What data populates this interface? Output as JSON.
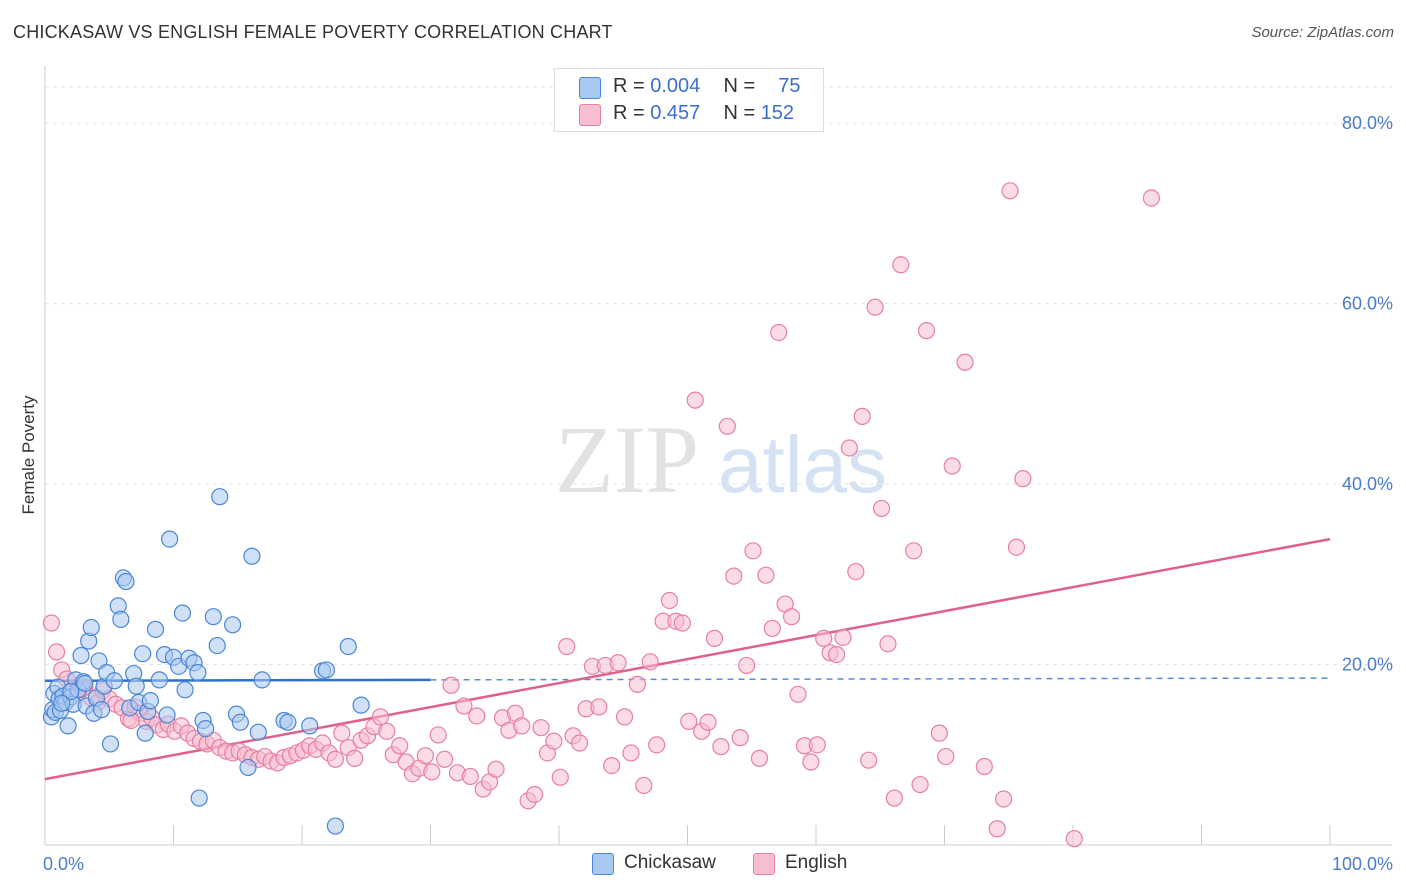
{
  "title": "CHICKASAW VS ENGLISH FEMALE POVERTY CORRELATION CHART",
  "source": "Source: ZipAtlas.com",
  "legend": {
    "rows": [
      {
        "r_label": "R =",
        "r_value": "0.004",
        "n_label": "N =",
        "n_value": "75"
      },
      {
        "r_label": "R =",
        "r_value": "0.457",
        "n_label": "N =",
        "n_value": "152"
      }
    ]
  },
  "colors": {
    "chickasaw_fill": "#a9c8f0",
    "chickasaw_stroke": "#4a86d6",
    "chickasaw_line": "#2f6fd0",
    "english_fill": "#f7bdd0",
    "english_stroke": "#e77fa2",
    "english_line": "#e0608c",
    "tick_text": "#4a7cc9"
  },
  "watermark": {
    "part1": "ZIP",
    "part2": "atlas"
  },
  "chart_data": {
    "type": "scatter",
    "ylabel": "Female Poverty",
    "xlabel": "",
    "xlim": [
      0,
      100
    ],
    "ylim": [
      0,
      85
    ],
    "x_tick_labels": [
      {
        "value": 0,
        "label": "0.0%"
      },
      {
        "value": 100,
        "label": "100.0%"
      }
    ],
    "y_tick_labels": [
      {
        "value": 20,
        "label": "20.0%"
      },
      {
        "value": 40,
        "label": "40.0%"
      },
      {
        "value": 60,
        "label": "60.0%"
      },
      {
        "value": 80,
        "label": "80.0%"
      }
    ],
    "grid": true,
    "legend_position": "top-center",
    "series": [
      {
        "name": "Chickasaw",
        "points": [
          [
            0.5,
            14.2
          ],
          [
            0.6,
            15.0
          ],
          [
            0.7,
            16.8
          ],
          [
            0.8,
            14.7
          ],
          [
            1.0,
            17.5
          ],
          [
            1.1,
            16.2
          ],
          [
            1.2,
            14.9
          ],
          [
            1.4,
            16.5
          ],
          [
            1.6,
            15.8
          ],
          [
            1.8,
            13.2
          ],
          [
            2.0,
            16.4
          ],
          [
            2.2,
            15.6
          ],
          [
            2.4,
            18.3
          ],
          [
            2.6,
            17.2
          ],
          [
            2.8,
            21.0
          ],
          [
            3.0,
            18.1
          ],
          [
            3.2,
            15.4
          ],
          [
            3.4,
            22.6
          ],
          [
            3.6,
            24.1
          ],
          [
            3.8,
            14.6
          ],
          [
            4.0,
            16.3
          ],
          [
            4.2,
            20.4
          ],
          [
            4.4,
            15.0
          ],
          [
            4.6,
            17.6
          ],
          [
            4.8,
            19.1
          ],
          [
            5.1,
            11.2
          ],
          [
            5.4,
            18.2
          ],
          [
            5.7,
            26.5
          ],
          [
            5.9,
            25.0
          ],
          [
            6.1,
            29.6
          ],
          [
            6.3,
            29.2
          ],
          [
            6.6,
            15.2
          ],
          [
            6.9,
            19.0
          ],
          [
            7.1,
            17.6
          ],
          [
            7.3,
            15.8
          ],
          [
            7.6,
            21.2
          ],
          [
            7.8,
            12.4
          ],
          [
            8.0,
            14.8
          ],
          [
            8.2,
            16.0
          ],
          [
            8.6,
            23.9
          ],
          [
            8.9,
            18.3
          ],
          [
            9.3,
            21.1
          ],
          [
            9.7,
            33.9
          ],
          [
            10.0,
            20.8
          ],
          [
            10.4,
            19.8
          ],
          [
            10.7,
            25.7
          ],
          [
            10.9,
            17.2
          ],
          [
            11.2,
            20.7
          ],
          [
            11.6,
            20.2
          ],
          [
            11.9,
            19.1
          ],
          [
            12.0,
            5.2
          ],
          [
            12.3,
            13.8
          ],
          [
            12.5,
            12.9
          ],
          [
            13.1,
            25.3
          ],
          [
            13.4,
            22.1
          ],
          [
            13.6,
            38.6
          ],
          [
            14.6,
            24.4
          ],
          [
            14.9,
            14.5
          ],
          [
            15.2,
            13.6
          ],
          [
            15.8,
            8.6
          ],
          [
            16.1,
            32.0
          ],
          [
            16.9,
            18.3
          ],
          [
            16.6,
            12.5
          ],
          [
            18.6,
            13.8
          ],
          [
            18.9,
            13.6
          ],
          [
            20.6,
            13.2
          ],
          [
            21.6,
            19.3
          ],
          [
            21.9,
            19.4
          ],
          [
            22.6,
            2.1
          ],
          [
            23.6,
            22.0
          ],
          [
            24.6,
            15.5
          ],
          [
            9.5,
            14.4
          ],
          [
            3.1,
            17.9
          ],
          [
            2.0,
            17.0
          ],
          [
            1.3,
            15.7
          ]
        ],
        "trend": {
          "x": [
            0,
            30
          ],
          "y": [
            18.2,
            18.3
          ],
          "extended_x": [
            30,
            100
          ],
          "extended_y": [
            18.3,
            18.5
          ]
        }
      },
      {
        "name": "English",
        "points": [
          [
            0.5,
            24.6
          ],
          [
            0.9,
            21.4
          ],
          [
            1.3,
            19.4
          ],
          [
            1.7,
            18.4
          ],
          [
            2.1,
            17.2
          ],
          [
            2.6,
            16.8
          ],
          [
            3.1,
            17.5
          ],
          [
            3.6,
            16.3
          ],
          [
            4.1,
            15.8
          ],
          [
            4.5,
            17.1
          ],
          [
            5.0,
            16.2
          ],
          [
            5.5,
            15.6
          ],
          [
            6.0,
            15.2
          ],
          [
            6.5,
            14.0
          ],
          [
            7.0,
            15.3
          ],
          [
            7.4,
            14.6
          ],
          [
            7.9,
            13.7
          ],
          [
            8.3,
            14.1
          ],
          [
            8.7,
            13.3
          ],
          [
            9.2,
            12.8
          ],
          [
            9.6,
            13.4
          ],
          [
            10.1,
            12.6
          ],
          [
            10.6,
            13.2
          ],
          [
            11.1,
            12.4
          ],
          [
            11.6,
            11.8
          ],
          [
            12.1,
            11.5
          ],
          [
            12.6,
            11.2
          ],
          [
            13.1,
            11.6
          ],
          [
            13.6,
            10.8
          ],
          [
            14.1,
            10.4
          ],
          [
            14.6,
            10.2
          ],
          [
            15.1,
            10.4
          ],
          [
            15.6,
            10.0
          ],
          [
            16.1,
            9.7
          ],
          [
            16.6,
            9.5
          ],
          [
            17.1,
            9.8
          ],
          [
            17.6,
            9.3
          ],
          [
            18.1,
            9.1
          ],
          [
            18.6,
            9.7
          ],
          [
            19.1,
            9.9
          ],
          [
            19.6,
            10.2
          ],
          [
            20.1,
            10.5
          ],
          [
            20.6,
            11.0
          ],
          [
            21.1,
            10.6
          ],
          [
            21.6,
            11.3
          ],
          [
            22.1,
            10.2
          ],
          [
            22.6,
            9.5
          ],
          [
            23.1,
            12.4
          ],
          [
            23.6,
            10.8
          ],
          [
            24.1,
            9.6
          ],
          [
            24.6,
            11.6
          ],
          [
            25.1,
            12.1
          ],
          [
            25.6,
            13.1
          ],
          [
            26.1,
            14.2
          ],
          [
            26.6,
            12.6
          ],
          [
            27.1,
            10.0
          ],
          [
            27.6,
            11.0
          ],
          [
            28.1,
            9.2
          ],
          [
            28.6,
            7.9
          ],
          [
            29.1,
            8.5
          ],
          [
            29.6,
            9.9
          ],
          [
            30.1,
            8.1
          ],
          [
            30.6,
            12.2
          ],
          [
            31.1,
            9.5
          ],
          [
            31.6,
            17.7
          ],
          [
            32.1,
            8.0
          ],
          [
            32.6,
            15.4
          ],
          [
            33.1,
            7.6
          ],
          [
            33.6,
            14.3
          ],
          [
            34.1,
            6.2
          ],
          [
            34.6,
            7.0
          ],
          [
            35.1,
            8.4
          ],
          [
            35.6,
            14.1
          ],
          [
            36.1,
            12.7
          ],
          [
            36.6,
            14.6
          ],
          [
            37.1,
            13.2
          ],
          [
            37.6,
            4.9
          ],
          [
            38.1,
            5.6
          ],
          [
            38.6,
            13.0
          ],
          [
            39.1,
            10.2
          ],
          [
            39.6,
            11.5
          ],
          [
            40.1,
            7.5
          ],
          [
            40.6,
            22.0
          ],
          [
            41.1,
            12.1
          ],
          [
            41.6,
            11.3
          ],
          [
            42.1,
            15.1
          ],
          [
            42.6,
            19.8
          ],
          [
            43.1,
            15.3
          ],
          [
            43.6,
            19.9
          ],
          [
            44.1,
            8.8
          ],
          [
            44.6,
            20.2
          ],
          [
            45.1,
            14.2
          ],
          [
            45.6,
            10.2
          ],
          [
            46.1,
            17.8
          ],
          [
            46.6,
            6.6
          ],
          [
            47.1,
            20.3
          ],
          [
            47.6,
            11.1
          ],
          [
            48.1,
            24.8
          ],
          [
            48.6,
            27.1
          ],
          [
            49.1,
            24.8
          ],
          [
            49.6,
            24.6
          ],
          [
            50.1,
            13.7
          ],
          [
            50.6,
            49.3
          ],
          [
            51.1,
            12.6
          ],
          [
            51.6,
            13.6
          ],
          [
            52.1,
            22.9
          ],
          [
            52.6,
            10.9
          ],
          [
            53.1,
            46.4
          ],
          [
            53.6,
            29.8
          ],
          [
            54.1,
            11.9
          ],
          [
            54.6,
            19.9
          ],
          [
            55.1,
            32.6
          ],
          [
            55.6,
            9.6
          ],
          [
            56.1,
            29.9
          ],
          [
            56.6,
            24.0
          ],
          [
            57.1,
            56.8
          ],
          [
            57.6,
            26.7
          ],
          [
            58.1,
            25.3
          ],
          [
            58.6,
            16.7
          ],
          [
            59.1,
            11.0
          ],
          [
            59.6,
            9.2
          ],
          [
            60.1,
            11.1
          ],
          [
            60.6,
            22.9
          ],
          [
            61.1,
            21.3
          ],
          [
            61.6,
            21.1
          ],
          [
            62.1,
            23.0
          ],
          [
            62.6,
            44.0
          ],
          [
            63.1,
            30.3
          ],
          [
            63.6,
            47.5
          ],
          [
            64.1,
            9.4
          ],
          [
            64.6,
            59.6
          ],
          [
            65.1,
            37.3
          ],
          [
            65.6,
            22.3
          ],
          [
            66.1,
            5.2
          ],
          [
            66.6,
            64.3
          ],
          [
            67.6,
            32.6
          ],
          [
            68.1,
            6.7
          ],
          [
            68.6,
            57.0
          ],
          [
            69.6,
            12.4
          ],
          [
            70.1,
            9.8
          ],
          [
            70.6,
            42.0
          ],
          [
            71.6,
            53.5
          ],
          [
            73.1,
            8.7
          ],
          [
            74.1,
            1.8
          ],
          [
            74.6,
            5.1
          ],
          [
            75.1,
            72.5
          ],
          [
            75.6,
            33.0
          ],
          [
            76.1,
            40.6
          ],
          [
            80.1,
            0.7
          ],
          [
            86.1,
            71.7
          ],
          [
            2.9,
            17.3
          ],
          [
            6.7,
            13.8
          ]
        ],
        "trend": {
          "x": [
            0,
            100
          ],
          "y": [
            7.3,
            33.9
          ]
        }
      }
    ]
  },
  "bottom_legend": [
    {
      "label": "Chickasaw"
    },
    {
      "label": "English"
    }
  ]
}
